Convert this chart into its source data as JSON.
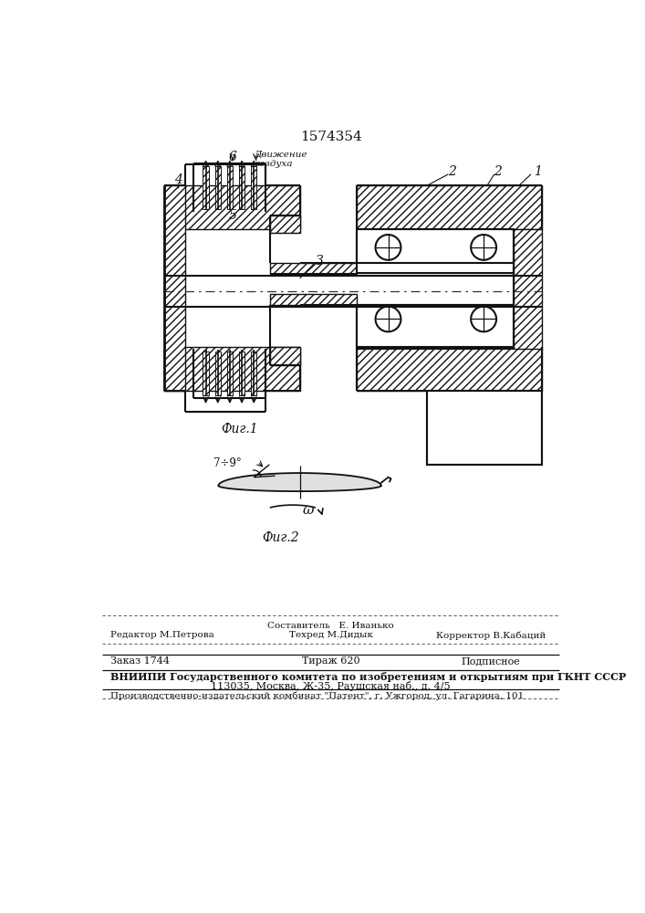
{
  "title": "1574354",
  "fig1_caption": "Фиг.1",
  "fig2_caption": "Фиг.2",
  "movement_text": "Движение\nвоздуха",
  "label_1": "1",
  "label_2a": "2",
  "label_2b": "2",
  "label_3": "3",
  "label_4": "4",
  "label_5": "5",
  "label_6": "6",
  "angle_label": "7÷9°",
  "omega_label": "ω",
  "line_color": "#111111",
  "footer_sestavitel": "Составитель   Е. Иванько",
  "footer_redaktor": "Редактор М.Петрова",
  "footer_tehred": "Техред М.Дидык",
  "footer_korrektor": "Корректор В.Кабаций",
  "footer_zakaz": "Заказ 1744",
  "footer_tirazh": "Тираж 620",
  "footer_podpisnoe": "Подписное",
  "footer_vniippi": "ВНИИПИ Государственного комитета по изобретениям и открытиям при ГКНТ СССР",
  "footer_addr": "113035, Москва, Ж-35, Раушская наб., д. 4/5",
  "footer_prod": "Производственно-издательский комбинат \"Патент\", г. Ужгород, ул. Гагарина, 101"
}
